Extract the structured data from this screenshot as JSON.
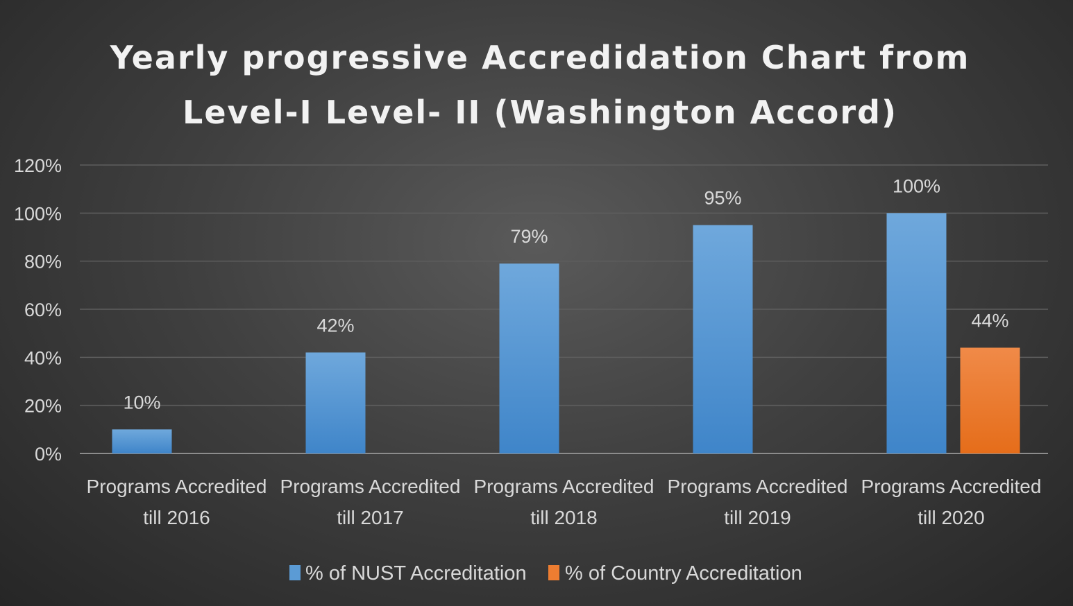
{
  "chart_data": {
    "type": "bar",
    "title_lines": [
      "Yearly progressive Accredidation Chart from",
      "Level-I Level- II (Washington Accord)"
    ],
    "categories": [
      [
        "Programs Accredited",
        "till 2016"
      ],
      [
        "Programs Accredited",
        "till 2017"
      ],
      [
        "Programs Accredited",
        "till 2018"
      ],
      [
        "Programs Accredited",
        "till 2019"
      ],
      [
        "Programs Accredited",
        "till 2020"
      ]
    ],
    "series": [
      {
        "name": "% of NUST Accreditation",
        "color": "#5b9bd5",
        "values": [
          10,
          42,
          79,
          95,
          100
        ],
        "labels": [
          "10%",
          "42%",
          "79%",
          "95%",
          "100%"
        ]
      },
      {
        "name": "% of Country Accreditation",
        "color": "#ed7d31",
        "values": [
          null,
          null,
          null,
          null,
          44
        ],
        "labels": [
          null,
          null,
          null,
          null,
          "44%"
        ]
      }
    ],
    "yticks": [
      0,
      20,
      40,
      60,
      80,
      100,
      120
    ],
    "ytick_labels": [
      "0%",
      "20%",
      "40%",
      "60%",
      "80%",
      "100%",
      "120%"
    ],
    "ylim": [
      0,
      120
    ],
    "xlabel": "",
    "ylabel": "",
    "grid": true,
    "legend_position": "bottom"
  }
}
